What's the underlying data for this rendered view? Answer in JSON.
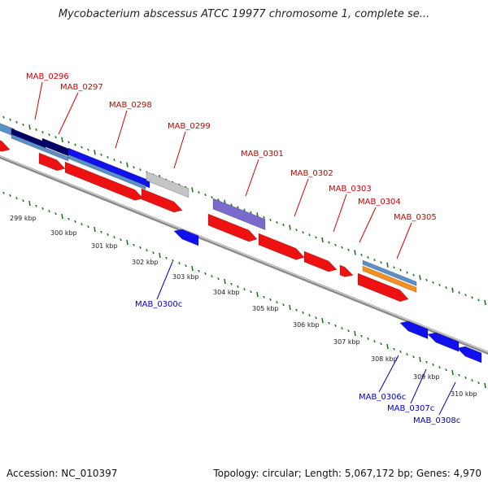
{
  "header": {
    "title": "Mycobacterium abscessus ATCC 19977 chromosome 1, complete se..."
  },
  "footer": {
    "accession": "Accession: NC_010397",
    "summary": "Topology: circular; Length: 5,067,172 bp; Genes: 4,970"
  },
  "colors": {
    "forward_label": "#cc0000",
    "reverse_label": "#0000bb",
    "tick": "#1a7a1a",
    "backbone": "#8a8a8a",
    "gene_red": "#ee1111",
    "gene_blue": "#1111ee",
    "gene_navy": "#000066",
    "gene_steel": "#5b8fc7",
    "gene_grey": "#c4c4c4",
    "gene_lavender": "#7a6acb",
    "gene_orange": "#f7901e"
  },
  "scale_labels": [
    "299 kbp",
    "300 kbp",
    "301 kbp",
    "302 kbp",
    "303 kbp",
    "304 kbp",
    "305 kbp",
    "306 kbp",
    "307 kbp",
    "308 kbp",
    "309 kbp",
    "310 kbp"
  ],
  "forward_genes": [
    "MAB_0296",
    "MAB_0297",
    "MAB_0298",
    "MAB_0299",
    "MAB_0301",
    "MAB_0302",
    "MAB_0303",
    "MAB_0304",
    "MAB_0305"
  ],
  "reverse_genes": [
    "MAB_0300c",
    "MAB_0306c",
    "MAB_0307c",
    "MAB_0308c"
  ]
}
